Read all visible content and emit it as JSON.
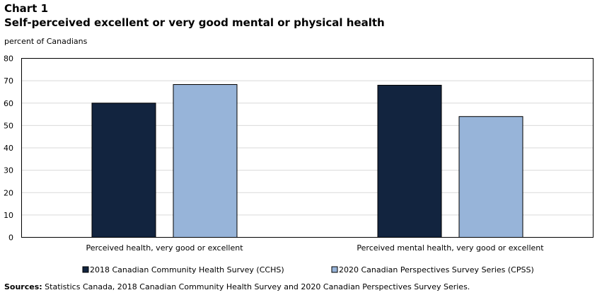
{
  "header": {
    "chart_number": "Chart 1",
    "title": "Self-perceived excellent or very good mental or physical health"
  },
  "chart_data": {
    "type": "bar",
    "title": "Self-perceived excellent or very good mental or physical health",
    "ylabel": "percent of Canadians",
    "xlabel": "",
    "ylim": [
      0,
      80
    ],
    "yticks": [
      "0",
      "10",
      "20",
      "30",
      "40",
      "50",
      "60",
      "70",
      "80"
    ],
    "grid": true,
    "legend_position": "bottom",
    "categories": [
      "Perceived health, very good or excellent",
      "Perceived mental health, very good or excellent"
    ],
    "series": [
      {
        "name": "2018 Canadian Community Health Survey (CCHS)",
        "values": [
          60,
          68
        ],
        "color": "#12243f"
      },
      {
        "name": "2020 Canadian Perspectives Survey Series (CPSS)",
        "values": [
          68.3,
          54
        ],
        "color": "#97b4d9"
      }
    ]
  },
  "footer": {
    "sources_label": "Sources:",
    "sources_text": " Statistics Canada, 2018 Canadian Community Health Survey and 2020 Canadian Perspectives Survey Series."
  }
}
